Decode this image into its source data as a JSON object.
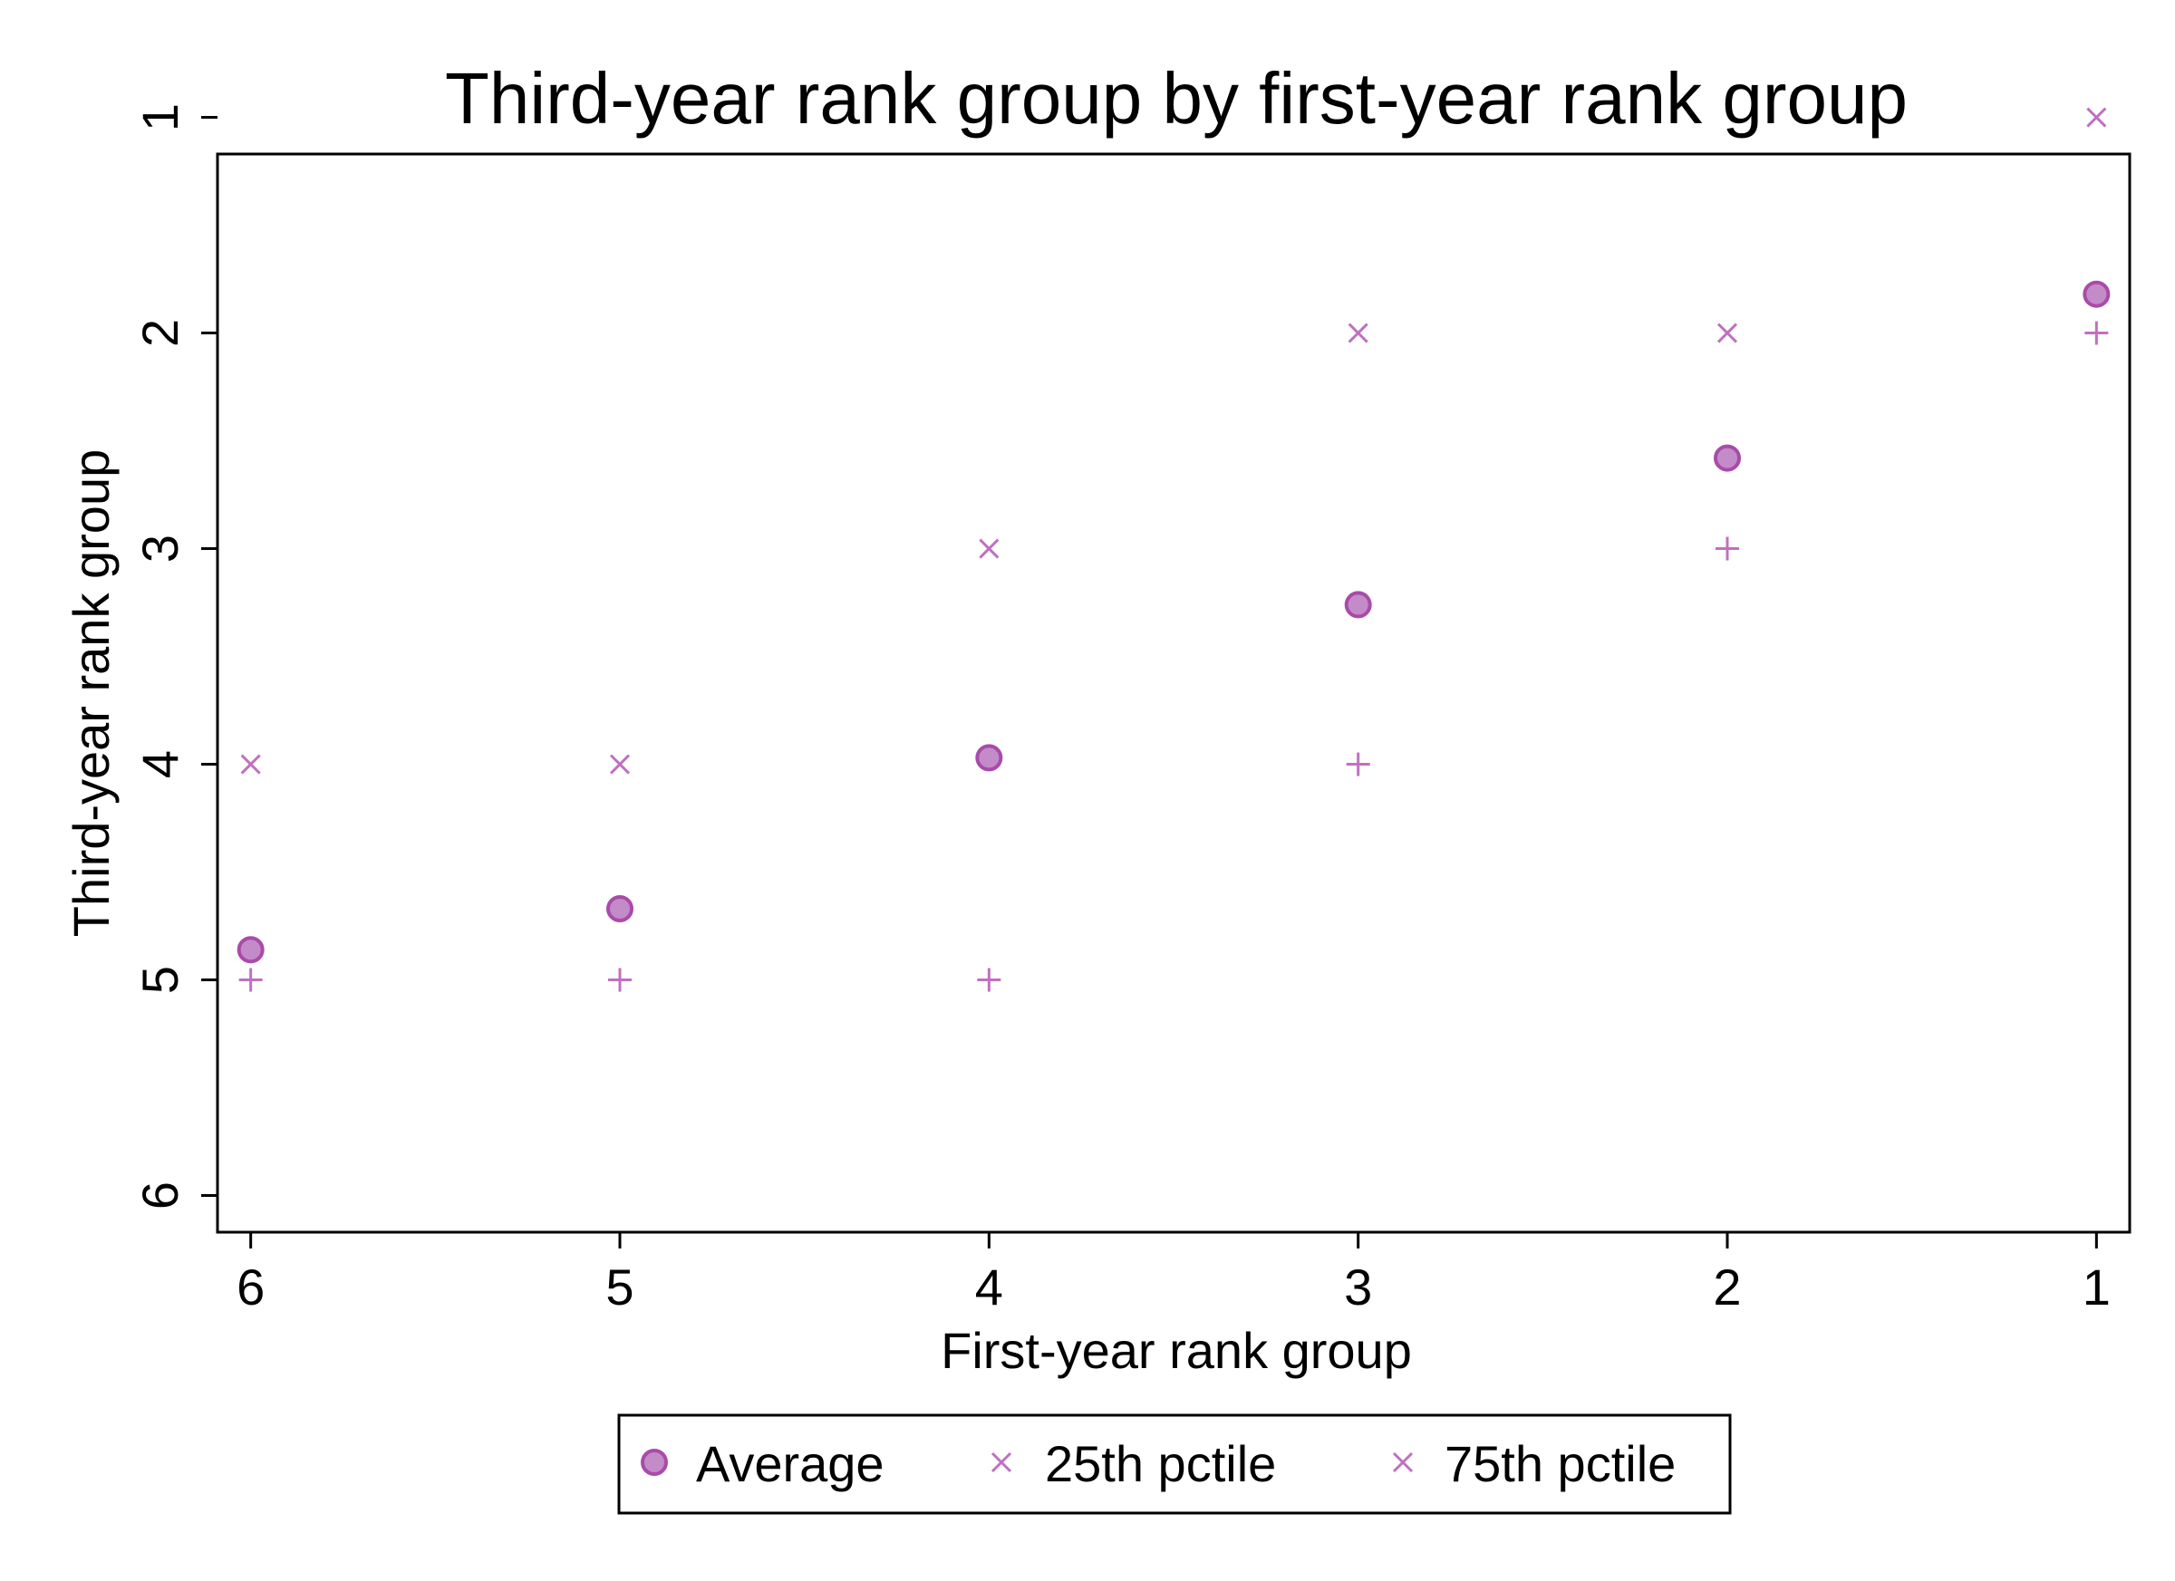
{
  "chart_data": {
    "type": "scatter",
    "title": "Third-year rank group by first-year rank group",
    "xlabel": "First-year rank group",
    "ylabel": "Third-year rank group",
    "x_ticks": [
      6,
      5,
      4,
      3,
      2,
      1
    ],
    "y_ticks": [
      1,
      2,
      3,
      4,
      5,
      6
    ],
    "xlim": [
      6.09,
      0.91
    ],
    "ylim": [
      1.17,
      6.17
    ],
    "x_reversed": true,
    "y_reversed": true,
    "grid": false,
    "legend_position": "bottom",
    "colors": {
      "marker": "#c070c0",
      "marker_fill": "#c48bc9",
      "marker_stroke": "#a94ba9"
    },
    "series": [
      {
        "name": "Average",
        "marker": "circle",
        "points": [
          {
            "x": 6,
            "y": 4.86
          },
          {
            "x": 5,
            "y": 4.67
          },
          {
            "x": 4,
            "y": 3.97
          },
          {
            "x": 3,
            "y": 3.26
          },
          {
            "x": 2,
            "y": 2.58
          },
          {
            "x": 1,
            "y": 1.82
          }
        ]
      },
      {
        "name": "25th pctile",
        "marker": "x",
        "points": [
          {
            "x": 6,
            "y": 4
          },
          {
            "x": 5,
            "y": 4
          },
          {
            "x": 4,
            "y": 3
          },
          {
            "x": 3,
            "y": 2
          },
          {
            "x": 2,
            "y": 2
          },
          {
            "x": 1,
            "y": 1
          }
        ]
      },
      {
        "name": "75th pctile",
        "marker": "x",
        "points": [
          {
            "x": 6,
            "y": 5
          },
          {
            "x": 5,
            "y": 5
          },
          {
            "x": 4,
            "y": 5
          },
          {
            "x": 3,
            "y": 4
          },
          {
            "x": 2,
            "y": 3
          },
          {
            "x": 1,
            "y": 2
          }
        ]
      }
    ]
  }
}
